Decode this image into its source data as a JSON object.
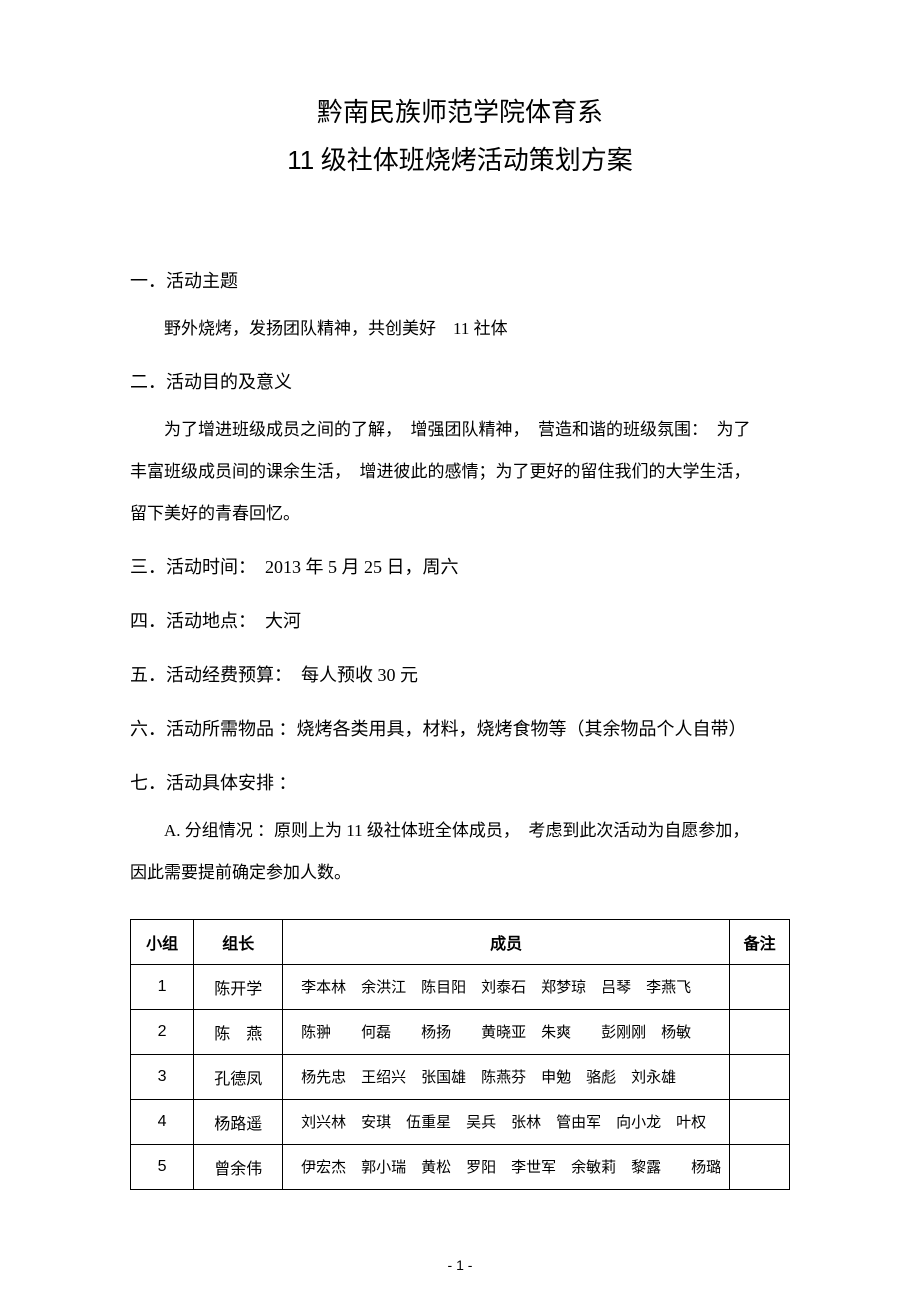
{
  "title": {
    "line1": "黔南民族师范学院体育系",
    "line2_prefix": "11",
    "line2_rest": " 级社体班烧烤活动策划方案"
  },
  "sections": {
    "s1_heading": "一．活动主题",
    "s1_body": "野外烧烤，发扬团队精神，共创美好　11 社体",
    "s2_heading": "二．活动目的及意义",
    "s2_body1": "为了增进班级成员之间的了解，　增强团队精神，　营造和谐的班级氛围：　为了",
    "s2_body2": "丰富班级成员间的课余生活，　增进彼此的感情；为了更好的留住我们的大学生活，",
    "s2_body3": "留下美好的青春回忆。",
    "s3_heading": "三．活动时间：　2013 年 5 月 25 日，周六",
    "s4_heading": "四．活动地点：　大河",
    "s5_heading": "五．活动经费预算：　每人预收 30 元",
    "s6_heading": "六．活动所需物品 ：烧烤各类用具，材料，烧烤食物等（其余物品个人自带）",
    "s7_heading": "七．活动具体安排 ：",
    "s7_a": "A. 分组情况 ：原则上为 11 级社体班全体成员，　考虑到此次活动为自愿参加，",
    "s7_a2": "因此需要提前确定参加人数。"
  },
  "table": {
    "headers": {
      "group": "小组",
      "leader": "组长",
      "members": "成员",
      "note": "备注"
    },
    "rows": [
      {
        "group": "1",
        "leader": "陈开学",
        "members": "李本林　余洪江　陈目阳　刘泰石　郑梦琼　吕琴　李燕飞",
        "note": ""
      },
      {
        "group": "2",
        "leader": "陈　燕",
        "members": "陈翀　　何磊　　杨扬　　黄晓亚　朱爽　　彭刚刚　杨敏",
        "note": ""
      },
      {
        "group": "3",
        "leader": "孔德凤",
        "members": "杨先忠　王绍兴　张国雄　陈燕芬　申勉　骆彪　刘永雄",
        "note": ""
      },
      {
        "group": "4",
        "leader": "杨路遥",
        "members": "刘兴林　安琪　伍重星　吴兵　张林　管由军　向小龙　叶权",
        "note": ""
      },
      {
        "group": "5",
        "leader": "曾余伟",
        "members": "伊宏杰　郭小瑞　黄松　罗阳　李世军　余敏莉　黎露　　杨璐",
        "note": ""
      }
    ]
  },
  "pageNumber": "- 1 -"
}
